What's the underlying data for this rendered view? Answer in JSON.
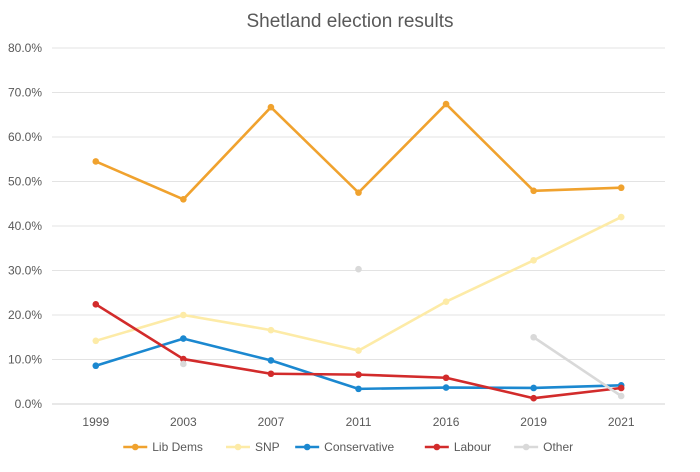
{
  "chart_data": {
    "type": "line",
    "title": "Shetland election results",
    "xlabel": "",
    "ylabel": "",
    "categories": [
      "1999",
      "2003",
      "2007",
      "2011",
      "2016",
      "2019",
      "2021"
    ],
    "ylim": [
      0,
      80
    ],
    "yticks": [
      0,
      10,
      20,
      30,
      40,
      50,
      60,
      70,
      80
    ],
    "ytick_labels": [
      "0.0%",
      "10.0%",
      "20.0%",
      "30.0%",
      "40.0%",
      "50.0%",
      "60.0%",
      "70.0%",
      "80.0%"
    ],
    "grid": true,
    "legend_position": "bottom",
    "series": [
      {
        "name": "Lib Dems",
        "color": "#F0A22E",
        "values": [
          54.5,
          46.0,
          66.7,
          47.5,
          67.4,
          47.9,
          48.6
        ]
      },
      {
        "name": "SNP",
        "color": "#FDEBA7",
        "values": [
          14.2,
          20.0,
          16.6,
          12.0,
          23.0,
          32.3,
          42.0
        ]
      },
      {
        "name": "Conservative",
        "color": "#1B88D0",
        "values": [
          8.6,
          14.7,
          9.8,
          3.4,
          3.7,
          3.6,
          4.2
        ]
      },
      {
        "name": "Labour",
        "color": "#D22B2B",
        "values": [
          22.4,
          10.1,
          6.8,
          6.6,
          5.9,
          1.3,
          3.6
        ]
      },
      {
        "name": "Other",
        "color": "#D9D9D9",
        "values": [
          null,
          9.0,
          null,
          30.3,
          null,
          15.0,
          1.8
        ]
      }
    ]
  }
}
